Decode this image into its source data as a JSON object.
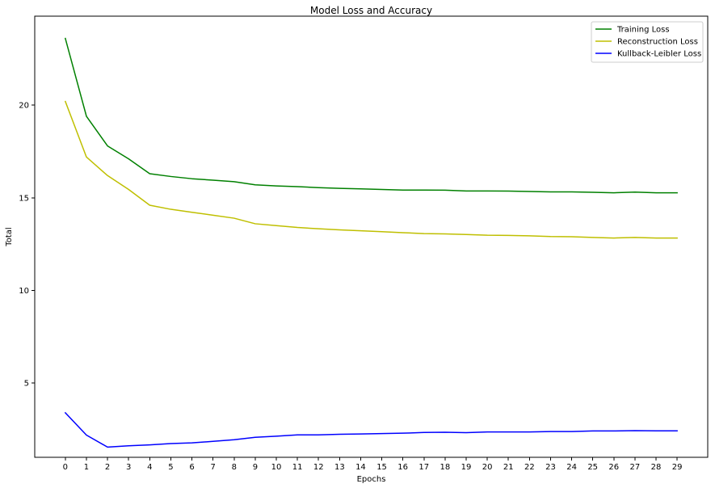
{
  "chart_data": {
    "type": "line",
    "title": "Model Loss and Accuracy",
    "xlabel": "Epochs",
    "ylabel": "Total",
    "x": [
      0,
      1,
      2,
      3,
      4,
      5,
      6,
      7,
      8,
      9,
      10,
      11,
      12,
      13,
      14,
      15,
      16,
      17,
      18,
      19,
      20,
      21,
      22,
      23,
      24,
      25,
      26,
      27,
      28,
      29
    ],
    "xticks": [
      "0",
      "1",
      "2",
      "3",
      "4",
      "5",
      "6",
      "7",
      "8",
      "9",
      "10",
      "11",
      "12",
      "13",
      "14",
      "15",
      "16",
      "17",
      "18",
      "19",
      "20",
      "21",
      "22",
      "23",
      "24",
      "25",
      "26",
      "27",
      "28",
      "29"
    ],
    "yticks": [
      "5",
      "10",
      "15",
      "20"
    ],
    "xlim": [
      -1.45,
      30.45
    ],
    "ylim": [
      1.0,
      24.8
    ],
    "grid": false,
    "legend": "top-right",
    "series": [
      {
        "name": "Training Loss",
        "color": "#008000",
        "values": [
          23.6,
          19.4,
          17.8,
          17.1,
          16.3,
          16.15,
          16.03,
          15.95,
          15.87,
          15.7,
          15.64,
          15.6,
          15.55,
          15.51,
          15.48,
          15.45,
          15.42,
          15.42,
          15.41,
          15.37,
          15.37,
          15.36,
          15.34,
          15.32,
          15.32,
          15.3,
          15.27,
          15.31,
          15.27,
          15.27
        ]
      },
      {
        "name": "Reconstruction Loss",
        "color": "#bfbf00",
        "values": [
          20.2,
          17.2,
          16.2,
          15.45,
          14.6,
          14.38,
          14.22,
          14.06,
          13.9,
          13.6,
          13.5,
          13.4,
          13.33,
          13.27,
          13.22,
          13.17,
          13.12,
          13.07,
          13.05,
          13.02,
          12.98,
          12.97,
          12.95,
          12.91,
          12.9,
          12.86,
          12.83,
          12.86,
          12.83,
          12.83
        ]
      },
      {
        "name": "Kullback-Leibler Loss",
        "color": "#0000ff",
        "values": [
          3.4,
          2.2,
          1.55,
          1.62,
          1.67,
          1.74,
          1.78,
          1.86,
          1.95,
          2.08,
          2.14,
          2.21,
          2.21,
          2.24,
          2.26,
          2.28,
          2.3,
          2.34,
          2.35,
          2.33,
          2.37,
          2.37,
          2.37,
          2.39,
          2.39,
          2.42,
          2.42,
          2.44,
          2.43,
          2.43
        ]
      }
    ]
  }
}
